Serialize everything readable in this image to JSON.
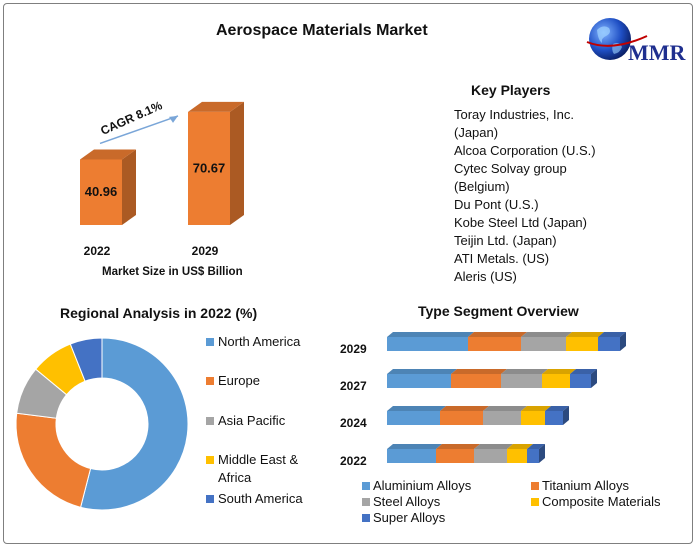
{
  "title": "Aerospace Materials Market",
  "logo": {
    "text": "MMR",
    "icon": "globe-icon"
  },
  "colors": {
    "orange": "#ed7d31",
    "blue": "#5b9bd5",
    "gray": "#a5a5a5",
    "yellow": "#ffc000",
    "darkblue": "#4472c4"
  },
  "key_players": {
    "heading": "Key Players",
    "items": [
      "Toray Industries, Inc.",
      "(Japan)",
      "Alcoa Corporation (U.S.)",
      "Cytec Solvay group",
      "(Belgium)",
      "Du Pont (U.S.)",
      "Kobe Steel Ltd (Japan)",
      "Teijin Ltd. (Japan)",
      "ATI Metals. (US)",
      "Aleris (US)"
    ]
  },
  "chart_data": [
    {
      "type": "bar",
      "categories": [
        "2022",
        "2029"
      ],
      "values": [
        40.96,
        70.67
      ],
      "value_labels": [
        "40.96",
        "70.67"
      ],
      "xlabel": "Market Size in US$ Billion",
      "annotation": "CAGR 8.1%"
    },
    {
      "type": "pie",
      "donut": true,
      "title": "Regional Analysis in 2022 (%)",
      "categories": [
        "North America",
        "Europe",
        "Asia Pacific",
        "Middle East & Africa",
        "South America"
      ],
      "values": [
        54,
        23,
        9,
        8,
        6
      ],
      "legend_labels": [
        [
          "North America"
        ],
        [
          "Europe"
        ],
        [
          "Asia Pacific"
        ],
        [
          "Middle East &",
          "Africa"
        ],
        [
          "South America"
        ]
      ],
      "legend": "right"
    },
    {
      "type": "bar",
      "orientation": "horizontal",
      "stacked": true,
      "title": "Type Segment Overview",
      "categories": [
        "2029",
        "2027",
        "2024",
        "2022"
      ],
      "series": [
        {
          "name": "Aluminium Alloys",
          "values": [
            81,
            64,
            53,
            49
          ]
        },
        {
          "name": "Titanium Alloys",
          "values": [
            53,
            50,
            43,
            38
          ]
        },
        {
          "name": "Steel Alloys",
          "values": [
            45,
            41,
            38,
            33
          ]
        },
        {
          "name": "Composite Materials",
          "values": [
            32,
            28,
            24,
            20
          ]
        },
        {
          "name": "Super Alloys",
          "values": [
            22,
            21,
            18,
            12
          ]
        }
      ],
      "legend": "bottom"
    }
  ]
}
